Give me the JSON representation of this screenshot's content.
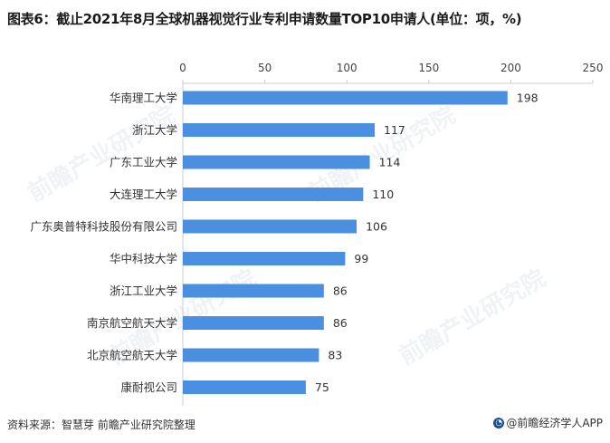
{
  "title": "图表6：截止2021年8月全球机器视觉行业专利申请数量TOP10申请人(单位：项，%)",
  "watermark": "前瞻产业研究院",
  "footer": {
    "source": "资料来源：智慧芽 前瞻产业研究院整理",
    "brand": "@前瞻经济学人APP"
  },
  "colors": {
    "bar": "#4a8fe0",
    "axis": "#cccccc"
  },
  "chart_data": {
    "type": "bar",
    "orientation": "horizontal",
    "categories": [
      "华南理工大学",
      "浙江大学",
      "广东工业大学",
      "大连理工大学",
      "广东奥普特科技股份有限公司",
      "华中科技大学",
      "浙江工业大学",
      "南京航空航天大学",
      "北京航空航天大学",
      "康耐视公司"
    ],
    "values": [
      198,
      117,
      114,
      110,
      106,
      99,
      86,
      86,
      83,
      75
    ],
    "xticks": [
      0,
      50,
      100,
      150,
      200,
      250
    ],
    "xlim": [
      0,
      250
    ],
    "x_axis_position": "top",
    "data_labels": true,
    "grid": false
  }
}
